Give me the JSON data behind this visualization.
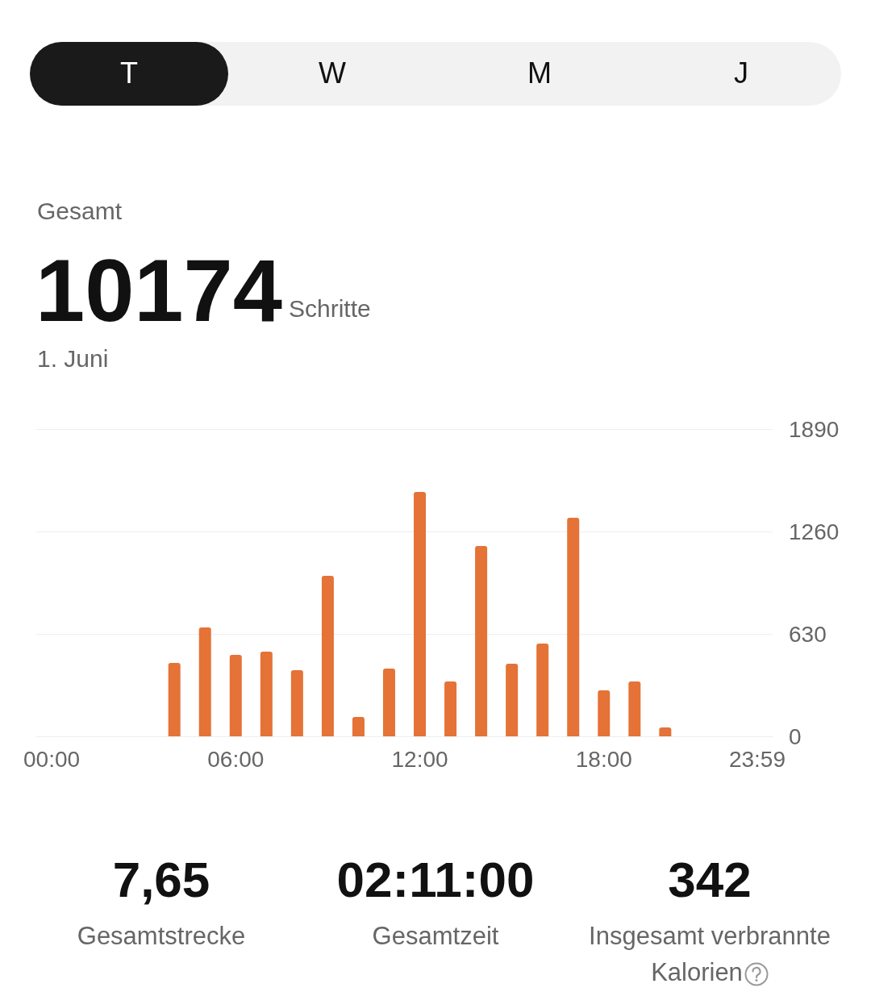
{
  "chart_data": {
    "type": "bar",
    "title": "Gesamt",
    "subtitle": "1. Juni",
    "annotations": [
      "T",
      "W",
      "M",
      "J",
      "10174",
      "Schritte",
      "7,65",
      "Gesamtstrecke",
      "02:11:00",
      "Gesamtzeit",
      "342",
      "Insgesamt verbrannte Kalorien"
    ],
    "categories": [
      "00:00",
      null,
      null,
      null,
      null,
      null,
      "06:00",
      null,
      null,
      null,
      null,
      null,
      "12:00",
      null,
      null,
      null,
      null,
      null,
      "18:00",
      null,
      null,
      null,
      null,
      "23:59"
    ],
    "values": [
      0,
      0,
      0,
      0,
      451,
      670,
      501,
      521,
      407,
      987,
      119,
      417,
      1503,
      337,
      1171,
      446,
      570,
      1344,
      283,
      337,
      55,
      0,
      0,
      0
    ],
    "color": "#e57236",
    "ylim": [
      0,
      1890
    ],
    "yticks": [
      0,
      630,
      1260,
      1890
    ],
    "grid": "y"
  }
}
